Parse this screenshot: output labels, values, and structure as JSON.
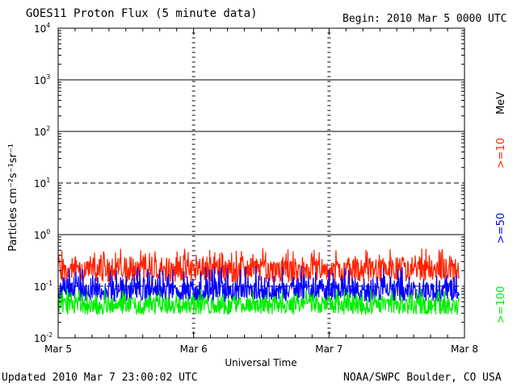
{
  "header": {
    "title": "GOES11 Proton Flux (5 minute data)",
    "begin": "Begin: 2010 Mar 5 0000 UTC"
  },
  "footer": {
    "updated": "Updated 2010 Mar  7 23:00:02 UTC",
    "org": "NOAA/SWPC Boulder, CO USA"
  },
  "colors": {
    "ge10": "#ff2200",
    "ge50": "#0000ff",
    "ge100": "#00ee00",
    "axes": "#000000"
  },
  "chart_data": {
    "type": "line",
    "title": "GOES11 Proton Flux (5 minute data)",
    "xlabel": "Universal Time",
    "ylabel": "Particles cm⁻²s⁻¹sr⁻¹",
    "yscale": "log",
    "ylim": [
      0.01,
      10000
    ],
    "y_ticks": [
      {
        "value": 0.01,
        "base": "10",
        "exp": "-2"
      },
      {
        "value": 0.1,
        "base": "10",
        "exp": "-1"
      },
      {
        "value": 1,
        "base": "10",
        "exp": "0"
      },
      {
        "value": 10,
        "base": "10",
        "exp": "1"
      },
      {
        "value": 100,
        "base": "10",
        "exp": "2"
      },
      {
        "value": 1000,
        "base": "10",
        "exp": "3"
      },
      {
        "value": 10000,
        "base": "10",
        "exp": "4"
      }
    ],
    "x_ticks": [
      "Mar 5",
      "Mar 6",
      "Mar 7",
      "Mar 8"
    ],
    "xlim_days": [
      0,
      3
    ],
    "data_end_day": 2.96,
    "unit_label": "MeV",
    "grid": "horizontal lines at each decade; dashed at 10 and 0.1",
    "series": [
      {
        "name": ">=10",
        "color": "#ff2200",
        "typical": 0.22,
        "min": 0.12,
        "max": 0.55
      },
      {
        "name": ">=50",
        "color": "#0000ff",
        "typical": 0.085,
        "min": 0.05,
        "max": 0.25
      },
      {
        "name": ">=100",
        "color": "#00ee00",
        "typical": 0.045,
        "min": 0.028,
        "max": 0.09
      }
    ]
  }
}
